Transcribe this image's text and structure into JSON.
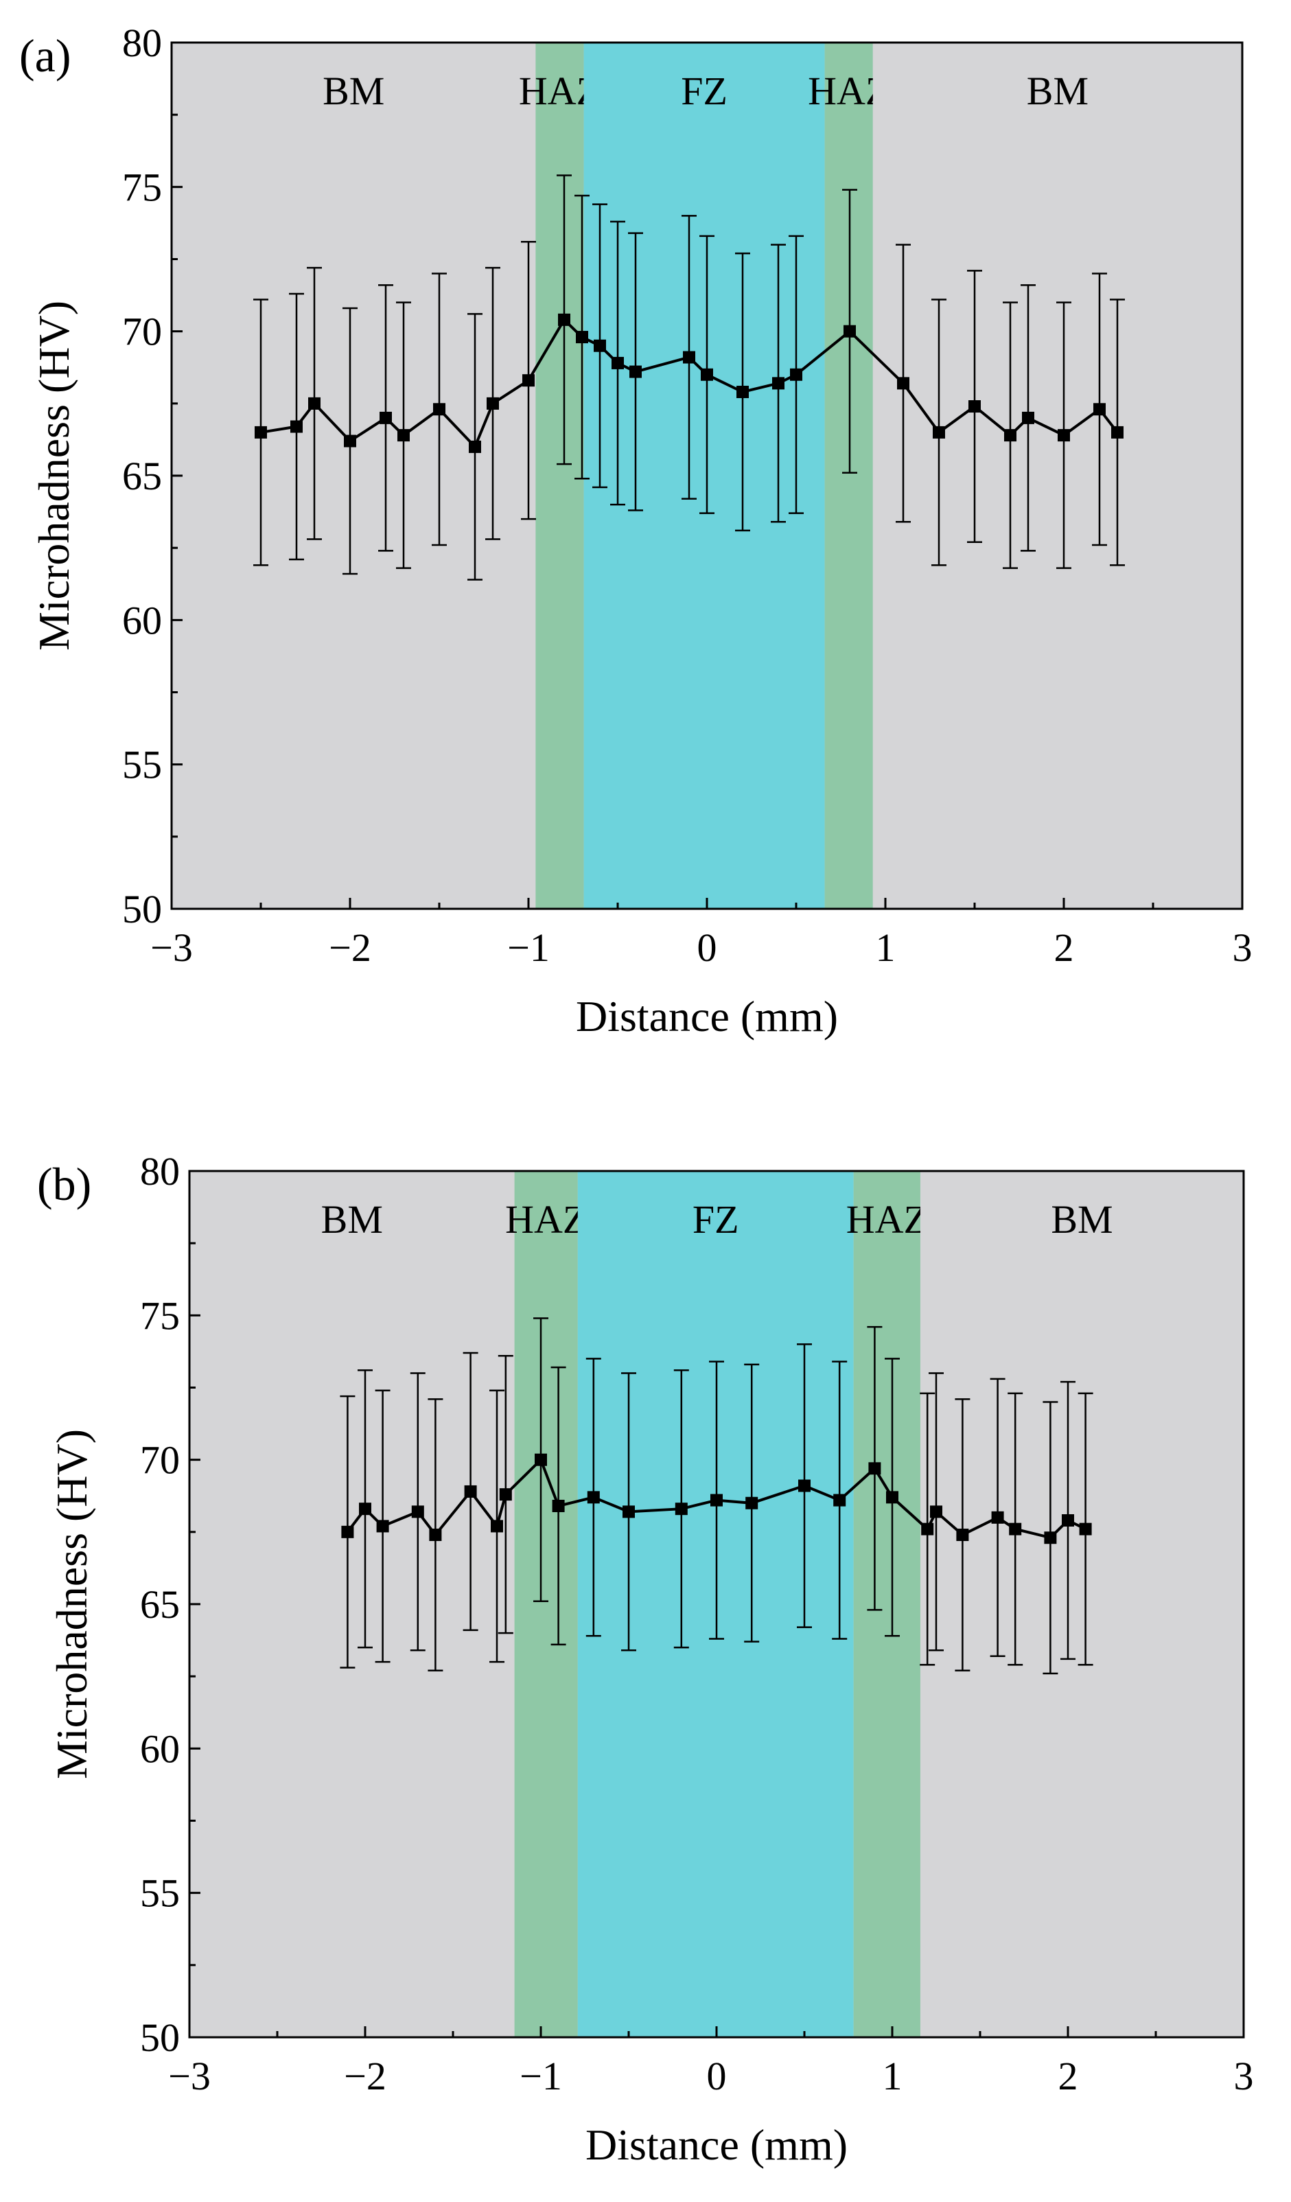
{
  "chart_data": [
    {
      "type": "line",
      "panel_label": "(a)",
      "xlabel": "Distance (mm)",
      "ylabel": "Microhadness (HV)",
      "xlim": [
        -3,
        3
      ],
      "ylim": [
        50,
        80
      ],
      "xticks": [
        "−3",
        "−2",
        "−1",
        "0",
        "1",
        "2",
        "3"
      ],
      "yticks": [
        "50",
        "55",
        "60",
        "65",
        "70",
        "75",
        "80"
      ],
      "grid": false,
      "markers": "square",
      "background_color": "#d5d5d7",
      "zones": [
        {
          "label": "BM",
          "x_start": -3.0,
          "x_end": -0.96,
          "color": "#d5d5d7"
        },
        {
          "label": "HAZ",
          "x_start": -0.96,
          "x_end": -0.69,
          "color": "#8fc8a6"
        },
        {
          "label": "FZ",
          "x_start": -0.69,
          "x_end": 0.66,
          "color": "#6dd3dc"
        },
        {
          "label": "HAZ",
          "x_start": 0.66,
          "x_end": 0.93,
          "color": "#8fc8a6"
        },
        {
          "label": "BM",
          "x_start": 0.93,
          "x_end": 3.0,
          "color": "#d5d5d7"
        }
      ],
      "x": [
        -2.5,
        -2.3,
        -2.2,
        -2.0,
        -1.8,
        -1.7,
        -1.5,
        -1.3,
        -1.2,
        -1.0,
        -0.8,
        -0.7,
        -0.6,
        -0.5,
        -0.4,
        -0.1,
        0.0,
        0.2,
        0.4,
        0.5,
        0.8,
        1.1,
        1.3,
        1.5,
        1.7,
        1.8,
        2.0,
        2.2,
        2.3
      ],
      "y": [
        66.5,
        66.7,
        67.5,
        66.2,
        67.0,
        66.4,
        67.3,
        66.0,
        67.5,
        68.3,
        70.4,
        69.8,
        69.5,
        68.9,
        68.6,
        69.1,
        68.5,
        67.9,
        68.2,
        68.5,
        70.0,
        68.2,
        66.5,
        67.4,
        66.4,
        67.0,
        66.4,
        67.3,
        66.5
      ],
      "error": [
        4.6,
        4.6,
        4.7,
        4.6,
        4.6,
        4.6,
        4.7,
        4.6,
        4.7,
        4.8,
        5.0,
        4.9,
        4.9,
        4.9,
        4.8,
        4.9,
        4.8,
        4.8,
        4.8,
        4.8,
        4.9,
        4.8,
        4.6,
        4.7,
        4.6,
        4.6,
        4.6,
        4.7,
        4.6
      ]
    },
    {
      "type": "line",
      "panel_label": "(b)",
      "xlabel": "Distance (mm)",
      "ylabel": "Microhadness (HV)",
      "xlim": [
        -3,
        3
      ],
      "ylim": [
        50,
        80
      ],
      "xticks": [
        "−3",
        "−2",
        "−1",
        "0",
        "1",
        "2",
        "3"
      ],
      "yticks": [
        "50",
        "55",
        "60",
        "65",
        "70",
        "75",
        "80"
      ],
      "grid": false,
      "markers": "square",
      "background_color": "#d5d5d7",
      "zones": [
        {
          "label": "BM",
          "x_start": -3.0,
          "x_end": -1.15,
          "color": "#d5d5d7"
        },
        {
          "label": "HAZ",
          "x_start": -1.15,
          "x_end": -0.79,
          "color": "#8fc8a6"
        },
        {
          "label": "FZ",
          "x_start": -0.79,
          "x_end": 0.78,
          "color": "#6dd3dc"
        },
        {
          "label": "HAZ",
          "x_start": 0.78,
          "x_end": 1.16,
          "color": "#8fc8a6"
        },
        {
          "label": "BM",
          "x_start": 1.16,
          "x_end": 3.0,
          "color": "#d5d5d7"
        }
      ],
      "x": [
        -2.1,
        -2.0,
        -1.9,
        -1.7,
        -1.6,
        -1.4,
        -1.25,
        -1.2,
        -1.0,
        -0.9,
        -0.7,
        -0.5,
        -0.2,
        0.0,
        0.2,
        0.5,
        0.7,
        0.9,
        1.0,
        1.2,
        1.25,
        1.4,
        1.6,
        1.7,
        1.9,
        2.0,
        2.1
      ],
      "y": [
        67.5,
        68.3,
        67.7,
        68.2,
        67.4,
        68.9,
        67.7,
        68.8,
        70.0,
        68.4,
        68.7,
        68.2,
        68.3,
        68.6,
        68.5,
        69.1,
        68.6,
        69.7,
        68.7,
        67.6,
        68.2,
        67.4,
        68.0,
        67.6,
        67.3,
        67.9,
        67.6
      ],
      "error": [
        4.7,
        4.8,
        4.7,
        4.8,
        4.7,
        4.8,
        4.7,
        4.8,
        4.9,
        4.8,
        4.8,
        4.8,
        4.8,
        4.8,
        4.8,
        4.9,
        4.8,
        4.9,
        4.8,
        4.7,
        4.8,
        4.7,
        4.8,
        4.7,
        4.7,
        4.8,
        4.7
      ]
    }
  ]
}
